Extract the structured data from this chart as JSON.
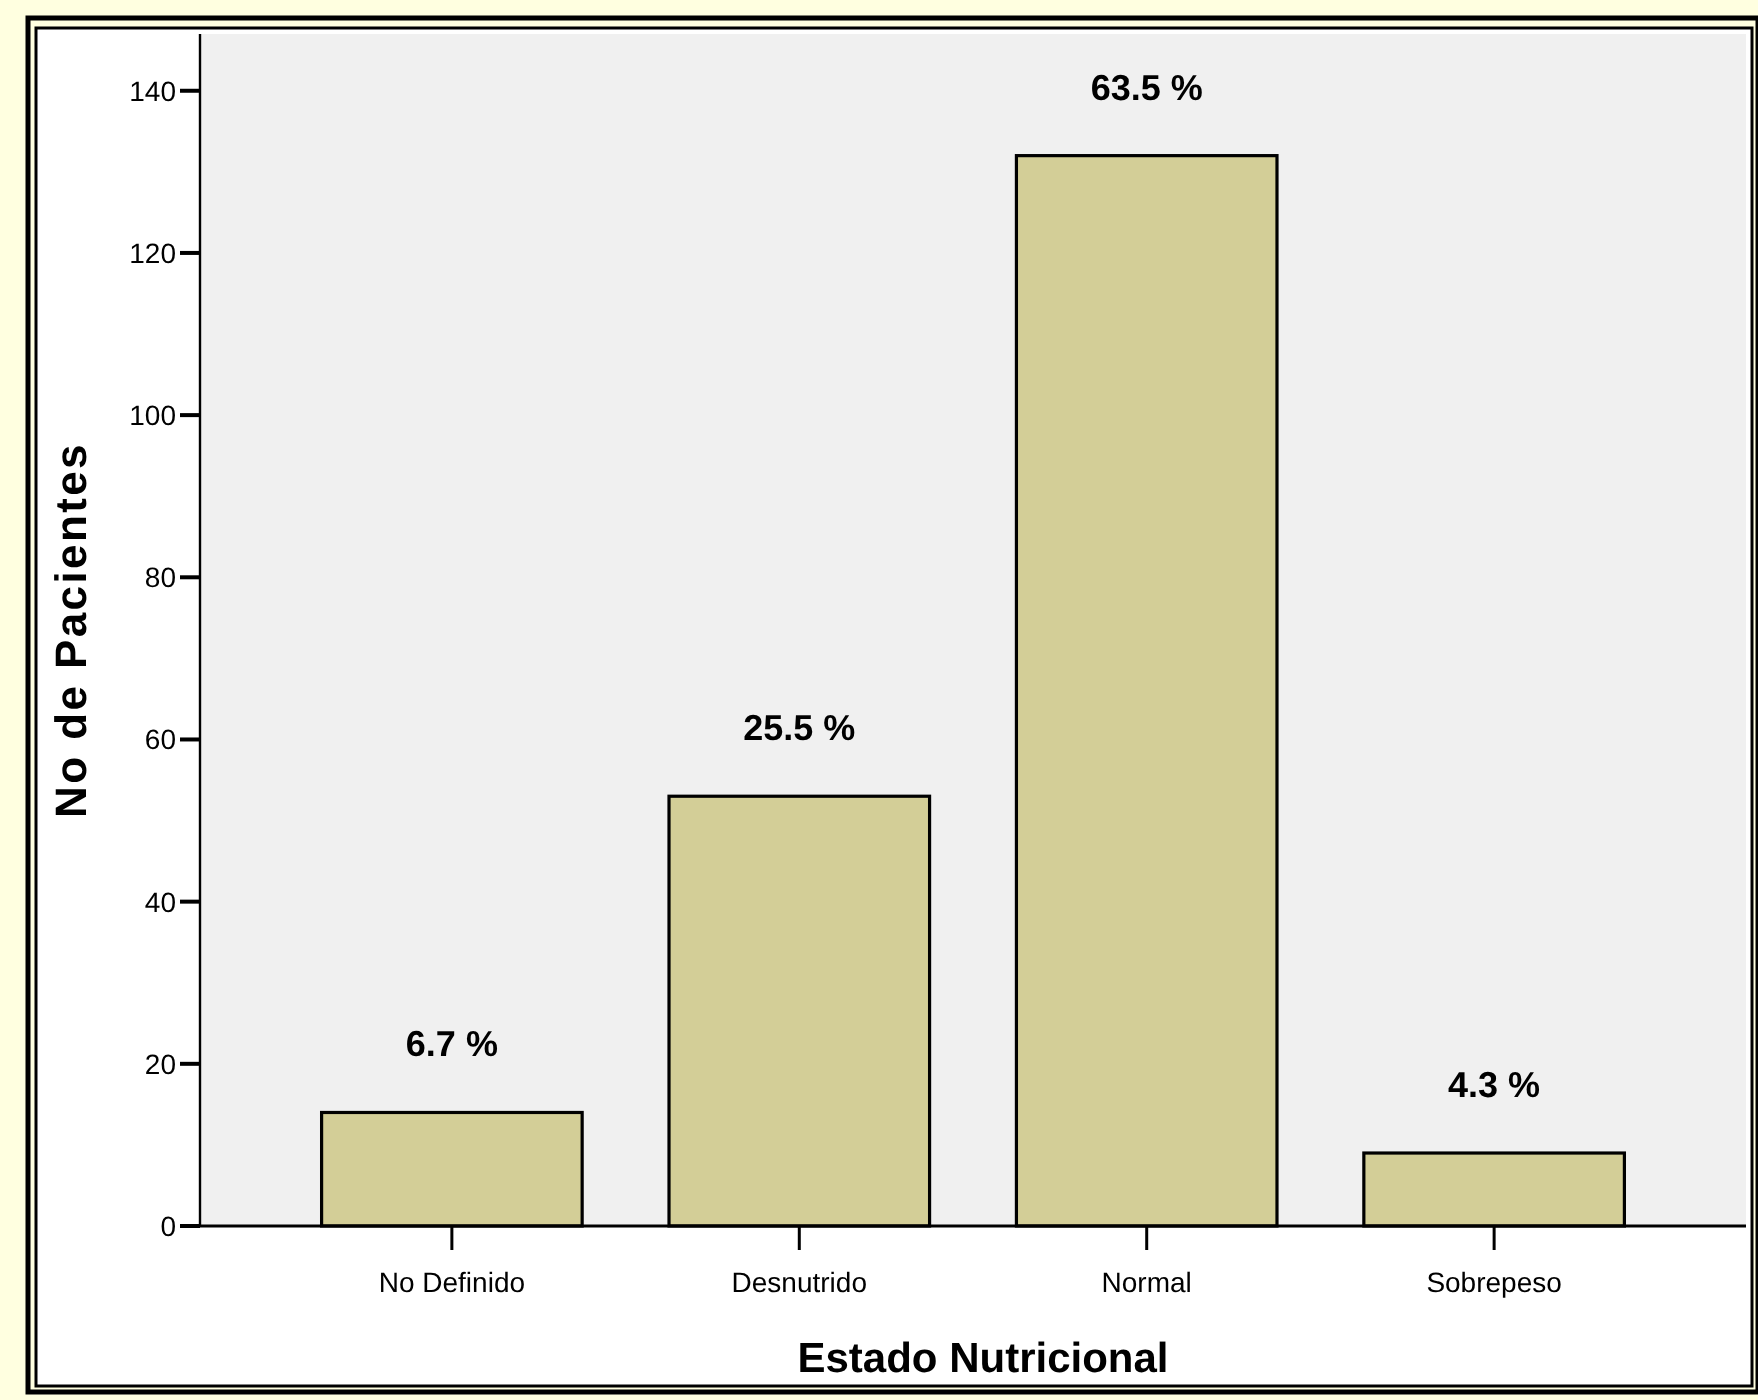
{
  "chart_data": {
    "type": "bar",
    "xlabel": "Estado Nutricional",
    "ylabel": "No de Pacientes",
    "categories": [
      "No Definido",
      "Desnutrido",
      "Normal",
      "Sobrepeso"
    ],
    "values": [
      14,
      53,
      132,
      9
    ],
    "color": "#d3ce97",
    "annotations": [
      {
        "text": "6.7 %",
        "x": "No Definido",
        "y": 14
      },
      {
        "text": "25.5 %",
        "x": "Desnutrido",
        "y": 53
      },
      {
        "text": "63.5 %",
        "x": "Normal",
        "y": 132
      },
      {
        "text": "4.3 %",
        "x": "Sobrepeso",
        "y": 9
      }
    ],
    "ylim": [
      0,
      147
    ],
    "yticks": [
      0,
      20,
      40,
      60,
      80,
      100,
      120,
      140
    ]
  }
}
